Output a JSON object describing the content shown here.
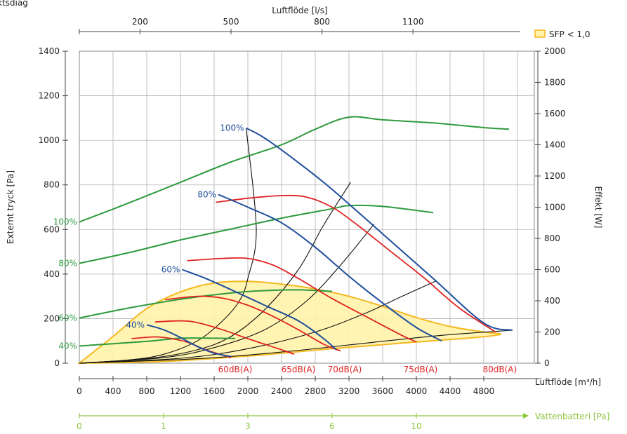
{
  "chart_data": {
    "type": "line",
    "top_fragment": "ktsdiag",
    "colors": {
      "grid": "#b0b0b0",
      "blue": "#1f4e9e",
      "red": "#e02424",
      "green": "#2e9a3e",
      "black": "#111111",
      "sfp_fill": "#fff3a8",
      "sfp_stroke": "#f5b820",
      "water_axis": "#8cc63f"
    },
    "bottom_axis": {
      "label": "Luftflöde [m³/h]",
      "ticks": [
        0,
        400,
        800,
        1200,
        1600,
        2000,
        2400,
        2800,
        3200,
        3600,
        4000,
        4400,
        4800
      ],
      "range": [
        0,
        5400
      ]
    },
    "top_axis": {
      "label": "Luftflöde [l/s]",
      "ticks": [
        200,
        500,
        800,
        1100
      ]
    },
    "left_axis": {
      "label": "Externt tryck [Pa]",
      "ticks": [
        0,
        200,
        400,
        600,
        800,
        1000,
        1200,
        1400
      ],
      "range": [
        0,
        1400
      ]
    },
    "right_axis": {
      "label": "Effekt [W]",
      "ticks": [
        0,
        200,
        400,
        600,
        800,
        1000,
        1200,
        1400,
        1600,
        1800,
        2000
      ],
      "range": [
        0,
        2000
      ]
    },
    "water_axis": {
      "label": "Vattenbatteri [Pa]",
      "ticks": [
        {
          "label": "0",
          "at_m3h": 0
        },
        {
          "label": "1",
          "at_m3h": 1000
        },
        {
          "label": "3",
          "at_m3h": 2000
        },
        {
          "label": "6",
          "at_m3h": 3000
        },
        {
          "label": "10",
          "at_m3h": 4000
        }
      ]
    },
    "legend": {
      "label": "SFP < 1,0",
      "position": "top-right"
    },
    "fan_curves": [
      {
        "name": "100%",
        "points": [
          [
            1980,
            1055
          ],
          [
            2200,
            1010
          ],
          [
            2600,
            900
          ],
          [
            3000,
            780
          ],
          [
            3600,
            580
          ],
          [
            4200,
            380
          ],
          [
            4800,
            180
          ],
          [
            5140,
            148
          ]
        ]
      },
      {
        "name": "80%",
        "points": [
          [
            1650,
            757
          ],
          [
            2000,
            700
          ],
          [
            2400,
            630
          ],
          [
            2800,
            520
          ],
          [
            3200,
            390
          ],
          [
            3600,
            270
          ],
          [
            4000,
            160
          ],
          [
            4300,
            100
          ]
        ]
      },
      {
        "name": "60%",
        "points": [
          [
            1220,
            420
          ],
          [
            1500,
            380
          ],
          [
            1800,
            330
          ],
          [
            2200,
            260
          ],
          [
            2600,
            190
          ],
          [
            2900,
            110
          ],
          [
            3050,
            60
          ]
        ]
      },
      {
        "name": "40%",
        "points": [
          [
            800,
            172
          ],
          [
            1000,
            150
          ],
          [
            1200,
            115
          ],
          [
            1400,
            75
          ],
          [
            1600,
            45
          ],
          [
            1800,
            30
          ]
        ]
      }
    ],
    "sound_curves": [
      {
        "name": "60dB(A)",
        "points": [
          [
            620,
            110
          ],
          [
            900,
            118
          ],
          [
            1100,
            110
          ],
          [
            1300,
            92
          ],
          [
            1500,
            60
          ],
          [
            1800,
            25
          ]
        ]
      },
      {
        "name": "65dB(A)",
        "points": [
          [
            900,
            185
          ],
          [
            1200,
            190
          ],
          [
            1400,
            182
          ],
          [
            1700,
            150
          ],
          [
            2000,
            110
          ],
          [
            2400,
            60
          ],
          [
            2550,
            40
          ]
        ]
      },
      {
        "name": "70dB(A)",
        "points": [
          [
            1020,
            285
          ],
          [
            1400,
            300
          ],
          [
            1700,
            292
          ],
          [
            2000,
            260
          ],
          [
            2300,
            210
          ],
          [
            2600,
            150
          ],
          [
            2900,
            85
          ],
          [
            3100,
            55
          ]
        ]
      },
      {
        "name": "75dB(A)",
        "points": [
          [
            1280,
            460
          ],
          [
            1700,
            470
          ],
          [
            2000,
            470
          ],
          [
            2300,
            440
          ],
          [
            2600,
            380
          ],
          [
            3000,
            290
          ],
          [
            3400,
            210
          ],
          [
            3800,
            130
          ],
          [
            4000,
            95
          ]
        ]
      },
      {
        "name": "80dB(A)",
        "points": [
          [
            1620,
            722
          ],
          [
            2000,
            740
          ],
          [
            2400,
            752
          ],
          [
            2700,
            745
          ],
          [
            3000,
            700
          ],
          [
            3300,
            620
          ],
          [
            3700,
            500
          ],
          [
            4100,
            380
          ],
          [
            4500,
            250
          ],
          [
            4940,
            140
          ]
        ]
      }
    ],
    "power_curves": [
      {
        "name": "100%",
        "points": [
          [
            0,
            905
          ],
          [
            600,
            1030
          ],
          [
            1200,
            1160
          ],
          [
            1800,
            1290
          ],
          [
            2400,
            1400
          ],
          [
            2800,
            1500
          ],
          [
            3200,
            1577
          ],
          [
            3600,
            1560
          ],
          [
            4200,
            1540
          ],
          [
            4800,
            1510
          ],
          [
            5100,
            1500
          ]
        ]
      },
      {
        "name": "80%",
        "points": [
          [
            0,
            640
          ],
          [
            600,
            710
          ],
          [
            1200,
            790
          ],
          [
            1800,
            860
          ],
          [
            2400,
            930
          ],
          [
            3000,
            990
          ],
          [
            3200,
            1010
          ],
          [
            3600,
            1005
          ],
          [
            4200,
            965
          ]
        ]
      },
      {
        "name": "60%",
        "points": [
          [
            0,
            290
          ],
          [
            600,
            355
          ],
          [
            1200,
            410
          ],
          [
            1800,
            450
          ],
          [
            2200,
            465
          ],
          [
            2600,
            470
          ],
          [
            3000,
            460
          ]
        ]
      },
      {
        "name": "40%",
        "points": [
          [
            0,
            110
          ],
          [
            400,
            125
          ],
          [
            800,
            140
          ],
          [
            1200,
            160
          ],
          [
            1600,
            160
          ],
          [
            1850,
            158
          ]
        ]
      }
    ],
    "power_labels": [
      "100%",
      "80%",
      "60%",
      "40%"
    ],
    "system_curves": [
      {
        "points": [
          [
            0,
            0
          ],
          [
            600,
            15
          ],
          [
            1000,
            40
          ],
          [
            1400,
            100
          ],
          [
            1700,
            190
          ],
          [
            1900,
            280
          ],
          [
            2000,
            380
          ],
          [
            2100,
            600
          ],
          [
            1980,
            1055
          ]
        ]
      },
      {
        "points": [
          [
            0,
            0
          ],
          [
            800,
            20
          ],
          [
            1400,
            60
          ],
          [
            1800,
            120
          ],
          [
            2200,
            240
          ],
          [
            2600,
            420
          ],
          [
            2900,
            620
          ],
          [
            3220,
            812
          ]
        ]
      },
      {
        "points": [
          [
            0,
            0
          ],
          [
            1000,
            25
          ],
          [
            1600,
            70
          ],
          [
            2200,
            150
          ],
          [
            2700,
            280
          ],
          [
            3100,
            440
          ],
          [
            3500,
            625
          ]
        ]
      },
      {
        "points": [
          [
            0,
            0
          ],
          [
            1200,
            22
          ],
          [
            2000,
            65
          ],
          [
            2800,
            140
          ],
          [
            3400,
            225
          ],
          [
            3800,
            295
          ],
          [
            4240,
            370
          ]
        ]
      },
      {
        "points": [
          [
            0,
            0
          ],
          [
            1400,
            20
          ],
          [
            2400,
            50
          ],
          [
            3400,
            90
          ],
          [
            4300,
            125
          ],
          [
            5140,
            148
          ]
        ]
      }
    ],
    "sfp_region": {
      "points": [
        [
          0,
          0
        ],
        [
          400,
          120
        ],
        [
          800,
          245
        ],
        [
          1200,
          320
        ],
        [
          1600,
          360
        ],
        [
          2000,
          367
        ],
        [
          2400,
          355
        ],
        [
          2800,
          333
        ],
        [
          3200,
          300
        ],
        [
          3600,
          255
        ],
        [
          4000,
          205
        ],
        [
          4400,
          165
        ],
        [
          4800,
          140
        ],
        [
          5000,
          130
        ],
        [
          4700,
          115
        ],
        [
          4000,
          95
        ],
        [
          3000,
          65
        ],
        [
          2000,
          32
        ],
        [
          1000,
          8
        ],
        [
          0,
          0
        ]
      ]
    }
  }
}
